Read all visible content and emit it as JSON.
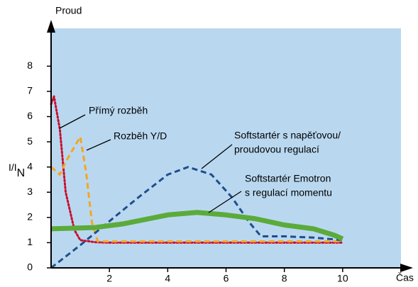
{
  "chart_data": {
    "type": "line",
    "ylabel": "Proud",
    "ylabel_main": "I/I",
    "ylabel_sub": "N",
    "xlabel": "Čas",
    "xlim": [
      0,
      12
    ],
    "ylim": [
      0,
      9.5
    ],
    "xticks": [
      2,
      4,
      6,
      8,
      10
    ],
    "yticks": [
      0,
      1,
      2,
      3,
      4,
      5,
      6,
      7,
      8
    ],
    "background": "#b9d8f0",
    "series": [
      {
        "label": [
          "Přímý rozběh"
        ],
        "color": "#c8102e",
        "style": "dotted",
        "x": [
          0,
          0.1,
          0.3,
          0.5,
          0.8,
          1.0,
          1.5,
          2,
          10
        ],
        "values": [
          6.5,
          6.8,
          5.5,
          3.0,
          1.5,
          1.1,
          1.02,
          1.0,
          1.0
        ]
      },
      {
        "label": [
          "Rozběh Y/D"
        ],
        "color": "#f5a524",
        "style": "dashed",
        "x": [
          0,
          0.3,
          0.5,
          0.8,
          1.0,
          1.2,
          1.4,
          1.6,
          10
        ],
        "values": [
          4.0,
          3.7,
          4.2,
          4.8,
          5.2,
          3.8,
          1.8,
          1.05,
          1.05
        ]
      },
      {
        "label": [
          "Softstartér s napěťovou/",
          "proudovou regulací"
        ],
        "color": "#1f4e8c",
        "style": "dashed",
        "x": [
          0,
          1,
          2,
          3,
          4,
          4.7,
          5.5,
          6.2,
          6.8,
          7.2,
          8,
          9,
          10
        ],
        "values": [
          0,
          0.9,
          1.85,
          2.8,
          3.7,
          4.0,
          3.7,
          2.8,
          1.8,
          1.25,
          1.25,
          1.2,
          1.1
        ]
      },
      {
        "label": [
          "Softstartér Emotron",
          "s regulací momentu"
        ],
        "color": "#5bab3a",
        "style": "thick",
        "x": [
          0,
          1.5,
          2.5,
          4,
          5,
          6,
          7,
          8,
          9,
          9.7,
          10
        ],
        "values": [
          1.55,
          1.6,
          1.75,
          2.1,
          2.2,
          2.1,
          1.95,
          1.7,
          1.55,
          1.3,
          1.15
        ]
      }
    ]
  }
}
